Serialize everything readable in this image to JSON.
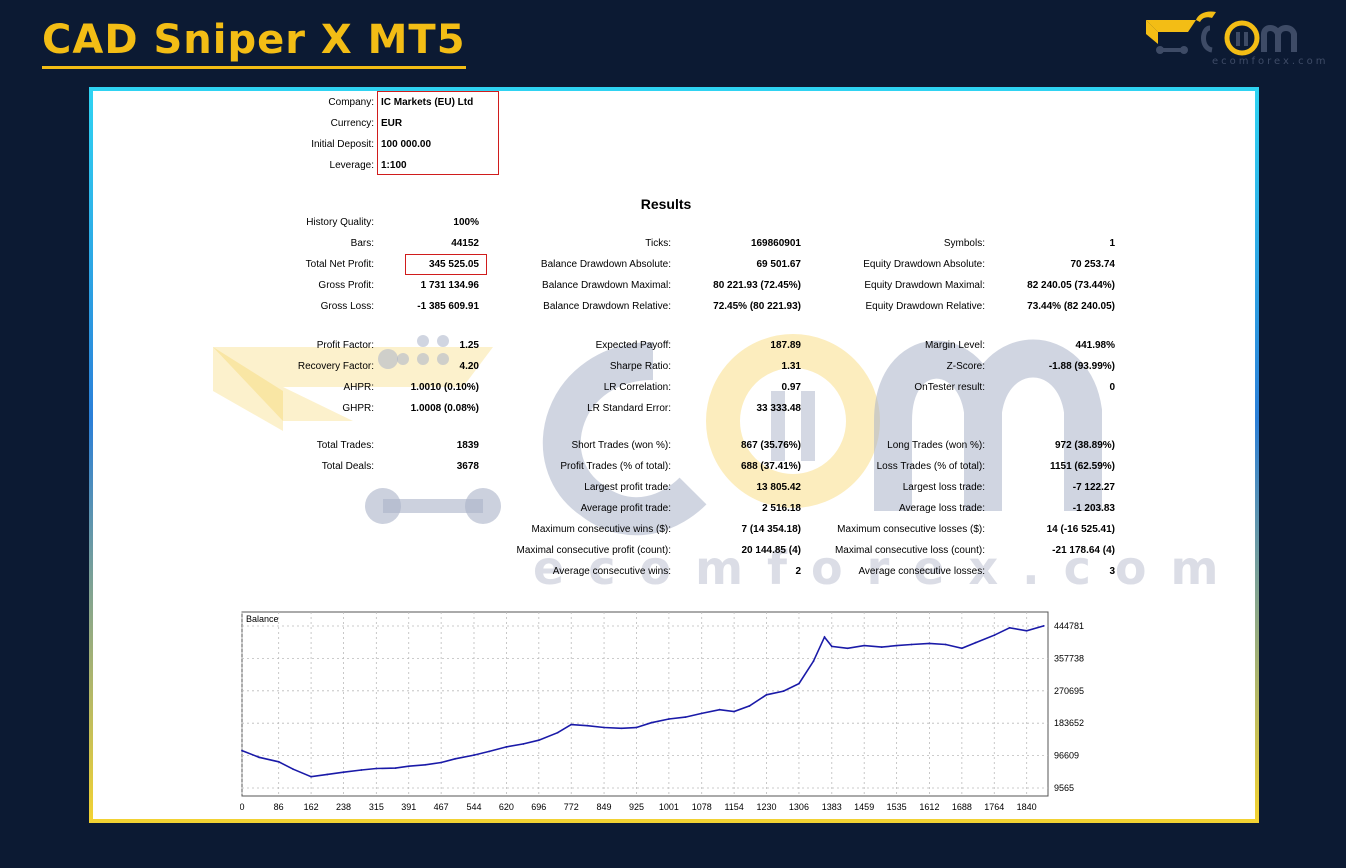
{
  "header": {
    "title": "CAD Sniper X MT5",
    "logo_subtext": "ecomforex.com",
    "watermark_text": "ecomforex.com"
  },
  "colors": {
    "accent": "#f3bd15",
    "background": "#0c1a33",
    "highlight_box": "#d01c1c",
    "chart_line": "#1a1aa8"
  },
  "account": [
    {
      "label": "Company:",
      "value": "IC Markets (EU) Ltd"
    },
    {
      "label": "Currency:",
      "value": "EUR"
    },
    {
      "label": "Initial Deposit:",
      "value": "100 000.00"
    },
    {
      "label": "Leverage:",
      "value": "1:100"
    }
  ],
  "results_title": "Results",
  "col1": [
    {
      "label": "History Quality:",
      "value": "100%"
    },
    {
      "label": "Bars:",
      "value": "44152"
    },
    {
      "label": "Total Net Profit:",
      "value": "345 525.05"
    },
    {
      "label": "Gross Profit:",
      "value": "1 731 134.96"
    },
    {
      "label": "Gross Loss:",
      "value": "-1 385 609.91"
    },
    {
      "label": "Profit Factor:",
      "value": "1.25"
    },
    {
      "label": "Recovery Factor:",
      "value": "4.20"
    },
    {
      "label": "AHPR:",
      "value": "1.0010 (0.10%)"
    },
    {
      "label": "GHPR:",
      "value": "1.0008 (0.08%)"
    },
    {
      "label": "Total Trades:",
      "value": "1839"
    },
    {
      "label": "Total Deals:",
      "value": "3678"
    }
  ],
  "col2": [
    {
      "label": "Ticks:",
      "value": "169860901"
    },
    {
      "label": "Balance Drawdown Absolute:",
      "value": "69 501.67"
    },
    {
      "label": "Balance Drawdown Maximal:",
      "value": "80 221.93 (72.45%)"
    },
    {
      "label": "Balance Drawdown Relative:",
      "value": "72.45% (80 221.93)"
    },
    {
      "label": "Expected Payoff:",
      "value": "187.89"
    },
    {
      "label": "Sharpe Ratio:",
      "value": "1.31"
    },
    {
      "label": "LR Correlation:",
      "value": "0.97"
    },
    {
      "label": "LR Standard Error:",
      "value": "33 333.48"
    },
    {
      "label": "Short Trades (won %):",
      "value": "867 (35.76%)"
    },
    {
      "label": "Profit Trades (% of total):",
      "value": "688 (37.41%)"
    },
    {
      "label": "Largest profit trade:",
      "value": "13 805.42"
    },
    {
      "label": "Average profit trade:",
      "value": "2 516.18"
    },
    {
      "label": "Maximum consecutive wins ($):",
      "value": "7 (14 354.18)"
    },
    {
      "label": "Maximal consecutive profit (count):",
      "value": "20 144.85 (4)"
    },
    {
      "label": "Average consecutive wins:",
      "value": "2"
    }
  ],
  "col3": [
    {
      "label": "Symbols:",
      "value": "1"
    },
    {
      "label": "Equity Drawdown Absolute:",
      "value": "70 253.74"
    },
    {
      "label": "Equity Drawdown Maximal:",
      "value": "82 240.05 (73.44%)"
    },
    {
      "label": "Equity Drawdown Relative:",
      "value": "73.44% (82 240.05)"
    },
    {
      "label": "Margin Level:",
      "value": "441.98%"
    },
    {
      "label": "Z-Score:",
      "value": "-1.88 (93.99%)"
    },
    {
      "label": "OnTester result:",
      "value": "0"
    },
    {
      "label": "Long Trades (won %):",
      "value": "972 (38.89%)"
    },
    {
      "label": "Loss Trades (% of total):",
      "value": "1151 (62.59%)"
    },
    {
      "label": "Largest loss trade:",
      "value": "-7 122.27"
    },
    {
      "label": "Average loss trade:",
      "value": "-1 203.83"
    },
    {
      "label": "Maximum consecutive losses ($):",
      "value": "14 (-16 525.41)"
    },
    {
      "label": "Maximal consecutive loss (count):",
      "value": "-21 178.64 (4)"
    },
    {
      "label": "Average consecutive losses:",
      "value": "3"
    }
  ],
  "chart_data": {
    "type": "line",
    "title": "Balance",
    "xlabel": "",
    "ylabel": "",
    "x_ticks": [
      "0",
      "86",
      "162",
      "238",
      "315",
      "391",
      "467",
      "544",
      "620",
      "696",
      "772",
      "849",
      "925",
      "1001",
      "1078",
      "1154",
      "1230",
      "1306",
      "1383",
      "1459",
      "1535",
      "1612",
      "1688",
      "1764",
      "1840"
    ],
    "y_ticks": [
      "444781",
      "357738",
      "270695",
      "183652",
      "96609",
      "9565"
    ],
    "xlim": [
      0,
      1890
    ],
    "ylim": [
      9565,
      444781
    ],
    "grid": true,
    "series": [
      {
        "x": [
          0,
          40,
          86,
          120,
          162,
          200,
          238,
          280,
          315,
          360,
          391,
          430,
          467,
          500,
          544,
          580,
          620,
          660,
          696,
          740,
          772,
          810,
          849,
          890,
          925,
          960,
          1001,
          1040,
          1078,
          1120,
          1154,
          1190,
          1230,
          1270,
          1306,
          1340,
          1366,
          1383,
          1420,
          1459,
          1500,
          1535,
          1570,
          1612,
          1650,
          1688,
          1720,
          1764,
          1800,
          1840,
          1880
        ],
        "y": [
          110000,
          92000,
          80000,
          60000,
          40000,
          46000,
          52000,
          58000,
          62000,
          63000,
          68000,
          72000,
          78000,
          88000,
          98000,
          108000,
          120000,
          128000,
          138000,
          158000,
          180000,
          177000,
          172000,
          170000,
          172000,
          185000,
          195000,
          200000,
          210000,
          220000,
          215000,
          230000,
          260000,
          270000,
          290000,
          350000,
          415000,
          390000,
          385000,
          392000,
          388000,
          392000,
          395000,
          398000,
          395000,
          385000,
          400000,
          420000,
          440000,
          432000,
          445000
        ]
      }
    ]
  }
}
